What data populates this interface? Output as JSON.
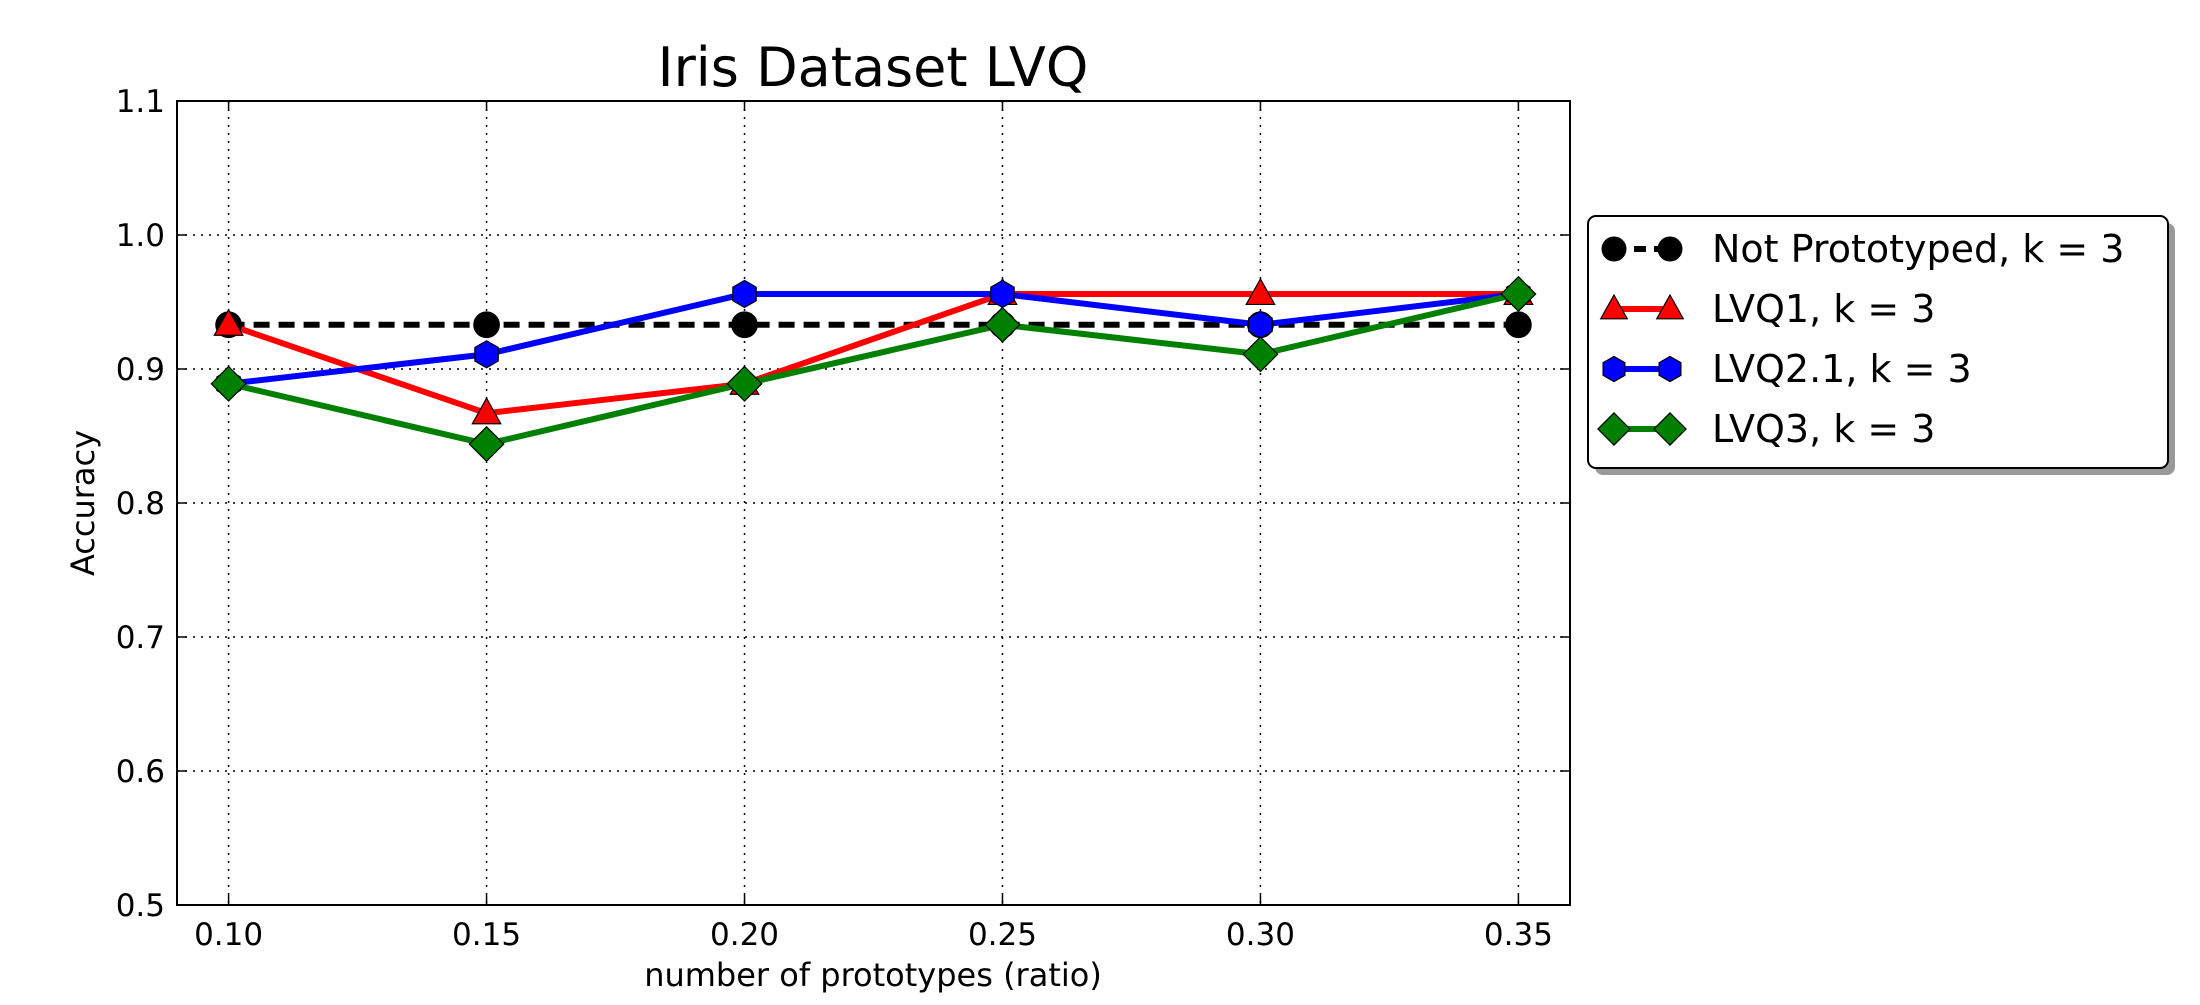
{
  "chart_data": {
    "type": "line",
    "title": "Iris Dataset LVQ",
    "xlabel": "number of prototypes (ratio)",
    "ylabel": "Accuracy",
    "xlim": [
      0.09,
      0.36
    ],
    "ylim": [
      0.5,
      1.1
    ],
    "xticks": [
      "0.10",
      "0.15",
      "0.20",
      "0.25",
      "0.30",
      "0.35"
    ],
    "yticks": [
      "0.5",
      "0.6",
      "0.7",
      "0.8",
      "0.9",
      "1.0",
      "1.1"
    ],
    "x": [
      0.1,
      0.15,
      0.2,
      0.25,
      0.3,
      0.35
    ],
    "grid": true,
    "legend_position": "right, outside plot area",
    "series": [
      {
        "name": "Not Prototyped, k = 3",
        "values": [
          0.933,
          0.933,
          0.933,
          0.933,
          0.933,
          0.933
        ],
        "color": "#000000",
        "marker": "circle",
        "linestyle": "dashed"
      },
      {
        "name": "LVQ1, k = 3",
        "values": [
          0.933,
          0.867,
          0.889,
          0.956,
          0.956,
          0.956
        ],
        "color": "#ff0000",
        "marker": "triangle",
        "linestyle": "solid"
      },
      {
        "name": "LVQ2.1, k = 3",
        "values": [
          0.889,
          0.911,
          0.956,
          0.956,
          0.933,
          0.956
        ],
        "color": "#0000ff",
        "marker": "hexagon",
        "linestyle": "solid"
      },
      {
        "name": "LVQ3, k = 3",
        "values": [
          0.889,
          0.844,
          0.889,
          0.933,
          0.911,
          0.956
        ],
        "color": "#008000",
        "marker": "diamond",
        "linestyle": "solid"
      }
    ]
  }
}
